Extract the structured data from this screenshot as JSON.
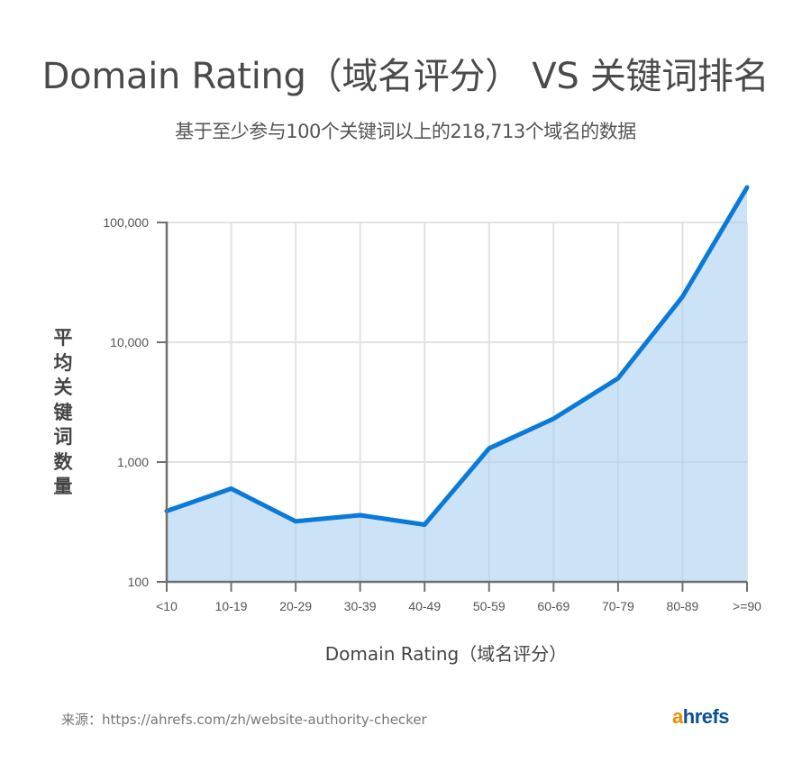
{
  "header": {
    "title": "Domain Rating（域名评分） VS 关键词排名",
    "subtitle": "基于至少参与100个关键词以上的218,713个域名的数据"
  },
  "axes": {
    "ylabel_chars": [
      "平",
      "均",
      "关",
      "键",
      "词",
      "数",
      "量"
    ],
    "xlabel": "Domain Rating（域名评分）",
    "yticks": [
      "100",
      "1,000",
      "10,000",
      "100,000"
    ]
  },
  "footer": {
    "source": "来源：https://ahrefs.com/zh/website-authority-checker",
    "logo_a": "a",
    "logo_rest": "hrefs"
  },
  "colors": {
    "line": "#0a7ad8",
    "fill": "#cce2f6",
    "grid": "#e2e2e2",
    "axis": "#707070",
    "logo_orange": "#f18a00",
    "logo_blue": "#0b4f96"
  },
  "chart_data": {
    "type": "area",
    "title": "Domain Rating（域名评分） VS 关键词排名",
    "subtitle": "基于至少参与100个关键词以上的218,713个域名的数据",
    "xlabel": "Domain Rating（域名评分）",
    "ylabel": "平均关键词数量",
    "yscale": "log",
    "ylim": [
      100,
      200000
    ],
    "yticks": [
      100,
      1000,
      10000,
      100000
    ],
    "ytick_labels": [
      "100",
      "1,000",
      "10,000",
      "100,000"
    ],
    "grid": true,
    "legend": null,
    "categories": [
      "<10",
      "10-19",
      "20-29",
      "30-39",
      "40-49",
      "50-59",
      "60-69",
      "70-79",
      "80-89",
      ">=90"
    ],
    "series": [
      {
        "name": "平均关键词数量",
        "values": [
          390,
          600,
          320,
          360,
          300,
          1300,
          2300,
          5000,
          24000,
          196000
        ]
      }
    ],
    "source": "来源：https://ahrefs.com/zh/website-authority-checker"
  }
}
